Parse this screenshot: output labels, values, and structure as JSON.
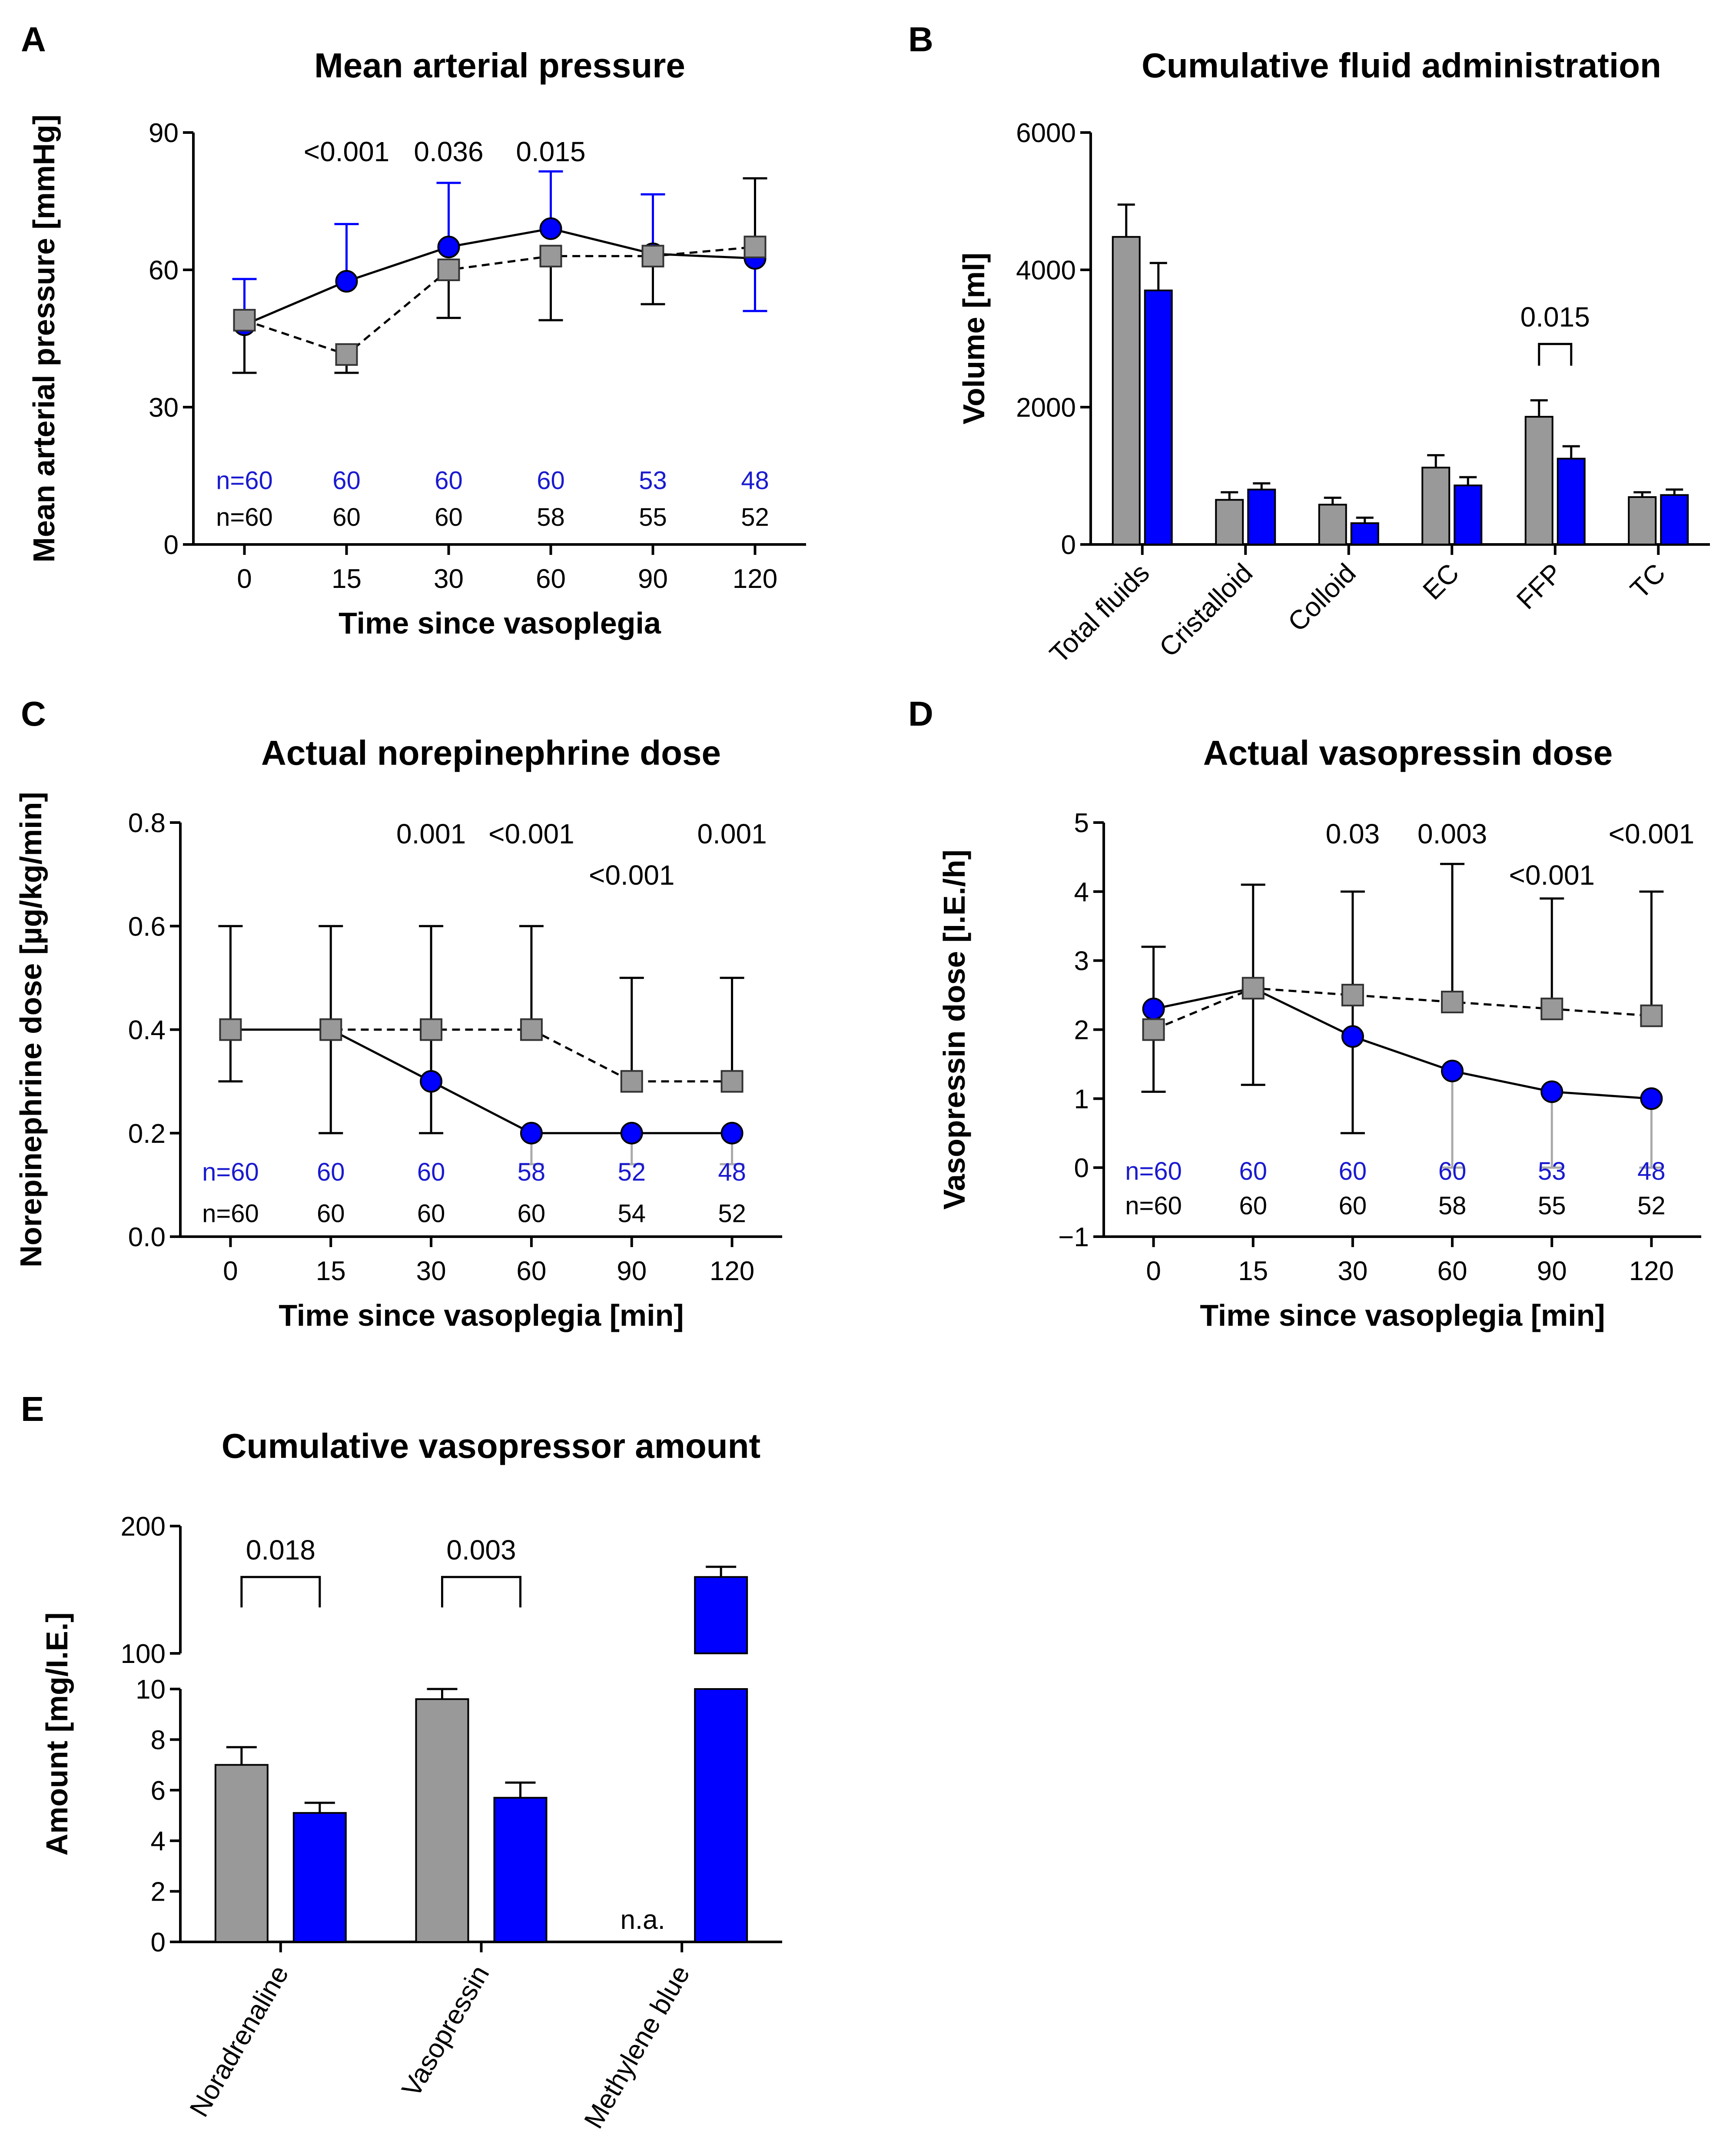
{
  "colors": {
    "gray": "#999999",
    "blue": "#0000ff",
    "black": "#000000",
    "blue_text": "#1a1ad0"
  },
  "chart_data": [
    {
      "panel": "A",
      "type": "line",
      "title": "Mean arterial pressure",
      "xlabel": "Time since vasoplegia",
      "ylabel": "Mean arterial pressure [mmHg]",
      "categories": [
        "0",
        "15",
        "30",
        "60",
        "90",
        "120"
      ],
      "ylim": [
        0,
        90
      ],
      "yticks": [
        "0",
        "30",
        "60",
        "90"
      ],
      "series": [
        {
          "name": "blue",
          "marker": "circle",
          "line": "solid",
          "values": [
            48,
            57.5,
            65,
            69,
            63.5,
            62.5
          ],
          "err_upper": [
            58,
            70,
            79,
            81.5,
            76.5,
            62.5
          ],
          "err_lower": [
            48,
            57.5,
            65,
            69,
            63.5,
            51
          ]
        },
        {
          "name": "gray",
          "marker": "square",
          "line": "dashed",
          "values": [
            49,
            41.5,
            60,
            63,
            63,
            65
          ],
          "err_upper": [
            49,
            41.5,
            60,
            63,
            63,
            80
          ],
          "err_lower": [
            37.5,
            37.5,
            49.5,
            49,
            52.5,
            65
          ]
        }
      ],
      "pvalues": [
        {
          "x": "15",
          "y": 86,
          "text": "<0.001"
        },
        {
          "x": "30",
          "y": 86,
          "text": "0.036"
        },
        {
          "x": "60",
          "y": 86,
          "text": "0.015"
        }
      ],
      "n_rows": [
        {
          "color": "blue",
          "y": 14,
          "values": [
            "n=60",
            "60",
            "60",
            "60",
            "53",
            "48"
          ]
        },
        {
          "color": "black",
          "y": 6,
          "values": [
            "n=60",
            "60",
            "60",
            "58",
            "55",
            "52"
          ]
        }
      ]
    },
    {
      "panel": "B",
      "type": "bar",
      "title": "Cumulative fluid administration",
      "xlabel": "",
      "ylabel": "Volume [ml]",
      "categories": [
        "Total fluids",
        "Cristalloid",
        "Colloid",
        "EC",
        "FFP",
        "TC"
      ],
      "ylim": [
        0,
        6000
      ],
      "yticks": [
        "0",
        "2000",
        "4000",
        "6000"
      ],
      "series": [
        {
          "name": "gray",
          "values": [
            4480,
            650,
            580,
            1120,
            1860,
            690
          ],
          "err_upper": [
            4950,
            760,
            680,
            1300,
            2100,
            760
          ]
        },
        {
          "name": "blue",
          "values": [
            3700,
            800,
            310,
            860,
            1250,
            720
          ],
          "err_upper": [
            4100,
            890,
            390,
            980,
            1430,
            800
          ]
        }
      ],
      "brackets": [
        {
          "category": "FFP",
          "y": 2920,
          "text": "0.015"
        }
      ]
    },
    {
      "panel": "C",
      "type": "line",
      "title": "Actual norepinephrine dose",
      "xlabel": "Time since vasoplegia [min]",
      "ylabel": "Norepinephrine dose [µg/kg/min]",
      "categories": [
        "0",
        "15",
        "30",
        "60",
        "90",
        "120"
      ],
      "ylim": [
        0,
        0.8
      ],
      "yticks": [
        "0.0",
        "0.2",
        "0.4",
        "0.6",
        "0.8"
      ],
      "series": [
        {
          "name": "blue",
          "marker": "circle",
          "line": "solid",
          "values": [
            0.4,
            0.4,
            0.3,
            0.2,
            0.2,
            0.2
          ],
          "err_upper": [
            0.4,
            0.4,
            0.3,
            0.2,
            0.2,
            0.2
          ],
          "err_lower": [
            0.4,
            0.2,
            0.3,
            0.14,
            0.14,
            0.14
          ]
        },
        {
          "name": "gray",
          "marker": "square",
          "line": "dashed",
          "values": [
            0.4,
            0.4,
            0.4,
            0.4,
            0.3,
            0.3
          ],
          "err_upper": [
            0.6,
            0.6,
            0.6,
            0.6,
            0.5,
            0.5
          ],
          "err_lower": [
            0.3,
            0.2,
            0.2,
            0.4,
            0.3,
            0.3
          ]
        }
      ],
      "pvalues": [
        {
          "x": "30",
          "y": 0.78,
          "text": "0.001"
        },
        {
          "x": "60",
          "y": 0.78,
          "text": "<0.001"
        },
        {
          "x": "90",
          "y": 0.7,
          "text": "<0.001"
        },
        {
          "x": "120",
          "y": 0.78,
          "text": "0.001"
        }
      ],
      "n_rows": [
        {
          "color": "blue",
          "y": 0.125,
          "values": [
            "n=60",
            "60",
            "60",
            "58",
            "52",
            "48"
          ]
        },
        {
          "color": "black",
          "y": 0.045,
          "values": [
            "n=60",
            "60",
            "60",
            "60",
            "54",
            "52"
          ]
        }
      ]
    },
    {
      "panel": "D",
      "type": "line",
      "title": "Actual vasopressin dose",
      "xlabel": "Time since vasoplegia [min]",
      "ylabel": "Vasopressin dose [I.E./h]",
      "categories": [
        "0",
        "15",
        "30",
        "60",
        "90",
        "120"
      ],
      "ylim": [
        -1,
        5
      ],
      "yticks": [
        "−1",
        "0",
        "1",
        "2",
        "3",
        "4",
        "5"
      ],
      "series": [
        {
          "name": "blue",
          "marker": "circle",
          "line": "solid",
          "values": [
            2.3,
            2.6,
            1.9,
            1.4,
            1.1,
            1.0
          ],
          "err_upper": [
            2.3,
            2.6,
            1.9,
            1.4,
            1.1,
            1.0
          ],
          "err_lower": [
            2.3,
            2.6,
            1.9,
            0.0,
            0.0,
            0.0
          ]
        },
        {
          "name": "gray",
          "marker": "square",
          "line": "dashed",
          "values": [
            2.0,
            2.6,
            2.5,
            2.4,
            2.3,
            2.2
          ],
          "err_upper": [
            3.2,
            4.1,
            4.0,
            4.4,
            3.9,
            4.0
          ],
          "err_lower": [
            1.1,
            1.2,
            0.5,
            2.4,
            2.3,
            2.2
          ]
        }
      ],
      "pvalues": [
        {
          "x": "30",
          "y": 4.85,
          "text": "0.03"
        },
        {
          "x": "60",
          "y": 4.85,
          "text": "0.003"
        },
        {
          "x": "90",
          "y": 4.25,
          "text": "<0.001"
        },
        {
          "x": "120",
          "y": 4.85,
          "text": "<0.001"
        }
      ],
      "n_rows": [
        {
          "color": "blue",
          "y": -0.05,
          "values": [
            "n=60",
            "60",
            "60",
            "60",
            "53",
            "48"
          ]
        },
        {
          "color": "black",
          "y": -0.55,
          "values": [
            "n=60",
            "60",
            "60",
            "58",
            "55",
            "52"
          ]
        }
      ]
    },
    {
      "panel": "E",
      "type": "bar",
      "title": "Cumulative vasopressor amount",
      "xlabel": "",
      "ylabel": "Amount [mg/I.E.]",
      "categories": [
        "Noradrenaline",
        "Vasopressin",
        "Methylene blue"
      ],
      "axis_break": {
        "lower": [
          0,
          10
        ],
        "upper": [
          100,
          200
        ]
      },
      "yticks_lower": [
        "0",
        "2",
        "4",
        "6",
        "8",
        "10"
      ],
      "yticks_upper": [
        "100",
        "200"
      ],
      "series": [
        {
          "name": "gray",
          "values": [
            7.0,
            9.6,
            null
          ],
          "err_upper": [
            7.7,
            10.0,
            null
          ]
        },
        {
          "name": "blue",
          "values": [
            5.1,
            5.7,
            160
          ],
          "err_upper": [
            5.5,
            6.3,
            168
          ]
        }
      ],
      "brackets": [
        {
          "category": "Noradrenaline",
          "y": 160,
          "text": "0.018"
        },
        {
          "category": "Vasopressin",
          "y": 160,
          "text": "0.003"
        }
      ],
      "annotations": [
        {
          "category": "Methylene blue",
          "text": "n.a."
        }
      ]
    }
  ]
}
